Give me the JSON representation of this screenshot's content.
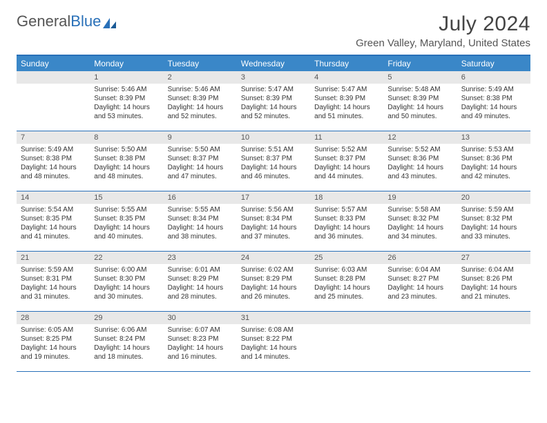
{
  "logo": {
    "text1": "General",
    "text2": "Blue"
  },
  "title": "July 2024",
  "location": "Green Valley, Maryland, United States",
  "colors": {
    "header_bg": "#3a87c8",
    "border": "#2970b8",
    "daynum_bg": "#e8e8e8",
    "text": "#333333",
    "title": "#444444"
  },
  "day_names": [
    "Sunday",
    "Monday",
    "Tuesday",
    "Wednesday",
    "Thursday",
    "Friday",
    "Saturday"
  ],
  "weeks": [
    [
      {
        "n": "",
        "sr": "",
        "ss": "",
        "dl": ""
      },
      {
        "n": "1",
        "sr": "Sunrise: 5:46 AM",
        "ss": "Sunset: 8:39 PM",
        "dl": "Daylight: 14 hours and 53 minutes."
      },
      {
        "n": "2",
        "sr": "Sunrise: 5:46 AM",
        "ss": "Sunset: 8:39 PM",
        "dl": "Daylight: 14 hours and 52 minutes."
      },
      {
        "n": "3",
        "sr": "Sunrise: 5:47 AM",
        "ss": "Sunset: 8:39 PM",
        "dl": "Daylight: 14 hours and 52 minutes."
      },
      {
        "n": "4",
        "sr": "Sunrise: 5:47 AM",
        "ss": "Sunset: 8:39 PM",
        "dl": "Daylight: 14 hours and 51 minutes."
      },
      {
        "n": "5",
        "sr": "Sunrise: 5:48 AM",
        "ss": "Sunset: 8:39 PM",
        "dl": "Daylight: 14 hours and 50 minutes."
      },
      {
        "n": "6",
        "sr": "Sunrise: 5:49 AM",
        "ss": "Sunset: 8:38 PM",
        "dl": "Daylight: 14 hours and 49 minutes."
      }
    ],
    [
      {
        "n": "7",
        "sr": "Sunrise: 5:49 AM",
        "ss": "Sunset: 8:38 PM",
        "dl": "Daylight: 14 hours and 48 minutes."
      },
      {
        "n": "8",
        "sr": "Sunrise: 5:50 AM",
        "ss": "Sunset: 8:38 PM",
        "dl": "Daylight: 14 hours and 48 minutes."
      },
      {
        "n": "9",
        "sr": "Sunrise: 5:50 AM",
        "ss": "Sunset: 8:37 PM",
        "dl": "Daylight: 14 hours and 47 minutes."
      },
      {
        "n": "10",
        "sr": "Sunrise: 5:51 AM",
        "ss": "Sunset: 8:37 PM",
        "dl": "Daylight: 14 hours and 46 minutes."
      },
      {
        "n": "11",
        "sr": "Sunrise: 5:52 AM",
        "ss": "Sunset: 8:37 PM",
        "dl": "Daylight: 14 hours and 44 minutes."
      },
      {
        "n": "12",
        "sr": "Sunrise: 5:52 AM",
        "ss": "Sunset: 8:36 PM",
        "dl": "Daylight: 14 hours and 43 minutes."
      },
      {
        "n": "13",
        "sr": "Sunrise: 5:53 AM",
        "ss": "Sunset: 8:36 PM",
        "dl": "Daylight: 14 hours and 42 minutes."
      }
    ],
    [
      {
        "n": "14",
        "sr": "Sunrise: 5:54 AM",
        "ss": "Sunset: 8:35 PM",
        "dl": "Daylight: 14 hours and 41 minutes."
      },
      {
        "n": "15",
        "sr": "Sunrise: 5:55 AM",
        "ss": "Sunset: 8:35 PM",
        "dl": "Daylight: 14 hours and 40 minutes."
      },
      {
        "n": "16",
        "sr": "Sunrise: 5:55 AM",
        "ss": "Sunset: 8:34 PM",
        "dl": "Daylight: 14 hours and 38 minutes."
      },
      {
        "n": "17",
        "sr": "Sunrise: 5:56 AM",
        "ss": "Sunset: 8:34 PM",
        "dl": "Daylight: 14 hours and 37 minutes."
      },
      {
        "n": "18",
        "sr": "Sunrise: 5:57 AM",
        "ss": "Sunset: 8:33 PM",
        "dl": "Daylight: 14 hours and 36 minutes."
      },
      {
        "n": "19",
        "sr": "Sunrise: 5:58 AM",
        "ss": "Sunset: 8:32 PM",
        "dl": "Daylight: 14 hours and 34 minutes."
      },
      {
        "n": "20",
        "sr": "Sunrise: 5:59 AM",
        "ss": "Sunset: 8:32 PM",
        "dl": "Daylight: 14 hours and 33 minutes."
      }
    ],
    [
      {
        "n": "21",
        "sr": "Sunrise: 5:59 AM",
        "ss": "Sunset: 8:31 PM",
        "dl": "Daylight: 14 hours and 31 minutes."
      },
      {
        "n": "22",
        "sr": "Sunrise: 6:00 AM",
        "ss": "Sunset: 8:30 PM",
        "dl": "Daylight: 14 hours and 30 minutes."
      },
      {
        "n": "23",
        "sr": "Sunrise: 6:01 AM",
        "ss": "Sunset: 8:29 PM",
        "dl": "Daylight: 14 hours and 28 minutes."
      },
      {
        "n": "24",
        "sr": "Sunrise: 6:02 AM",
        "ss": "Sunset: 8:29 PM",
        "dl": "Daylight: 14 hours and 26 minutes."
      },
      {
        "n": "25",
        "sr": "Sunrise: 6:03 AM",
        "ss": "Sunset: 8:28 PM",
        "dl": "Daylight: 14 hours and 25 minutes."
      },
      {
        "n": "26",
        "sr": "Sunrise: 6:04 AM",
        "ss": "Sunset: 8:27 PM",
        "dl": "Daylight: 14 hours and 23 minutes."
      },
      {
        "n": "27",
        "sr": "Sunrise: 6:04 AM",
        "ss": "Sunset: 8:26 PM",
        "dl": "Daylight: 14 hours and 21 minutes."
      }
    ],
    [
      {
        "n": "28",
        "sr": "Sunrise: 6:05 AM",
        "ss": "Sunset: 8:25 PM",
        "dl": "Daylight: 14 hours and 19 minutes."
      },
      {
        "n": "29",
        "sr": "Sunrise: 6:06 AM",
        "ss": "Sunset: 8:24 PM",
        "dl": "Daylight: 14 hours and 18 minutes."
      },
      {
        "n": "30",
        "sr": "Sunrise: 6:07 AM",
        "ss": "Sunset: 8:23 PM",
        "dl": "Daylight: 14 hours and 16 minutes."
      },
      {
        "n": "31",
        "sr": "Sunrise: 6:08 AM",
        "ss": "Sunset: 8:22 PM",
        "dl": "Daylight: 14 hours and 14 minutes."
      },
      {
        "n": "",
        "sr": "",
        "ss": "",
        "dl": ""
      },
      {
        "n": "",
        "sr": "",
        "ss": "",
        "dl": ""
      },
      {
        "n": "",
        "sr": "",
        "ss": "",
        "dl": ""
      }
    ]
  ]
}
